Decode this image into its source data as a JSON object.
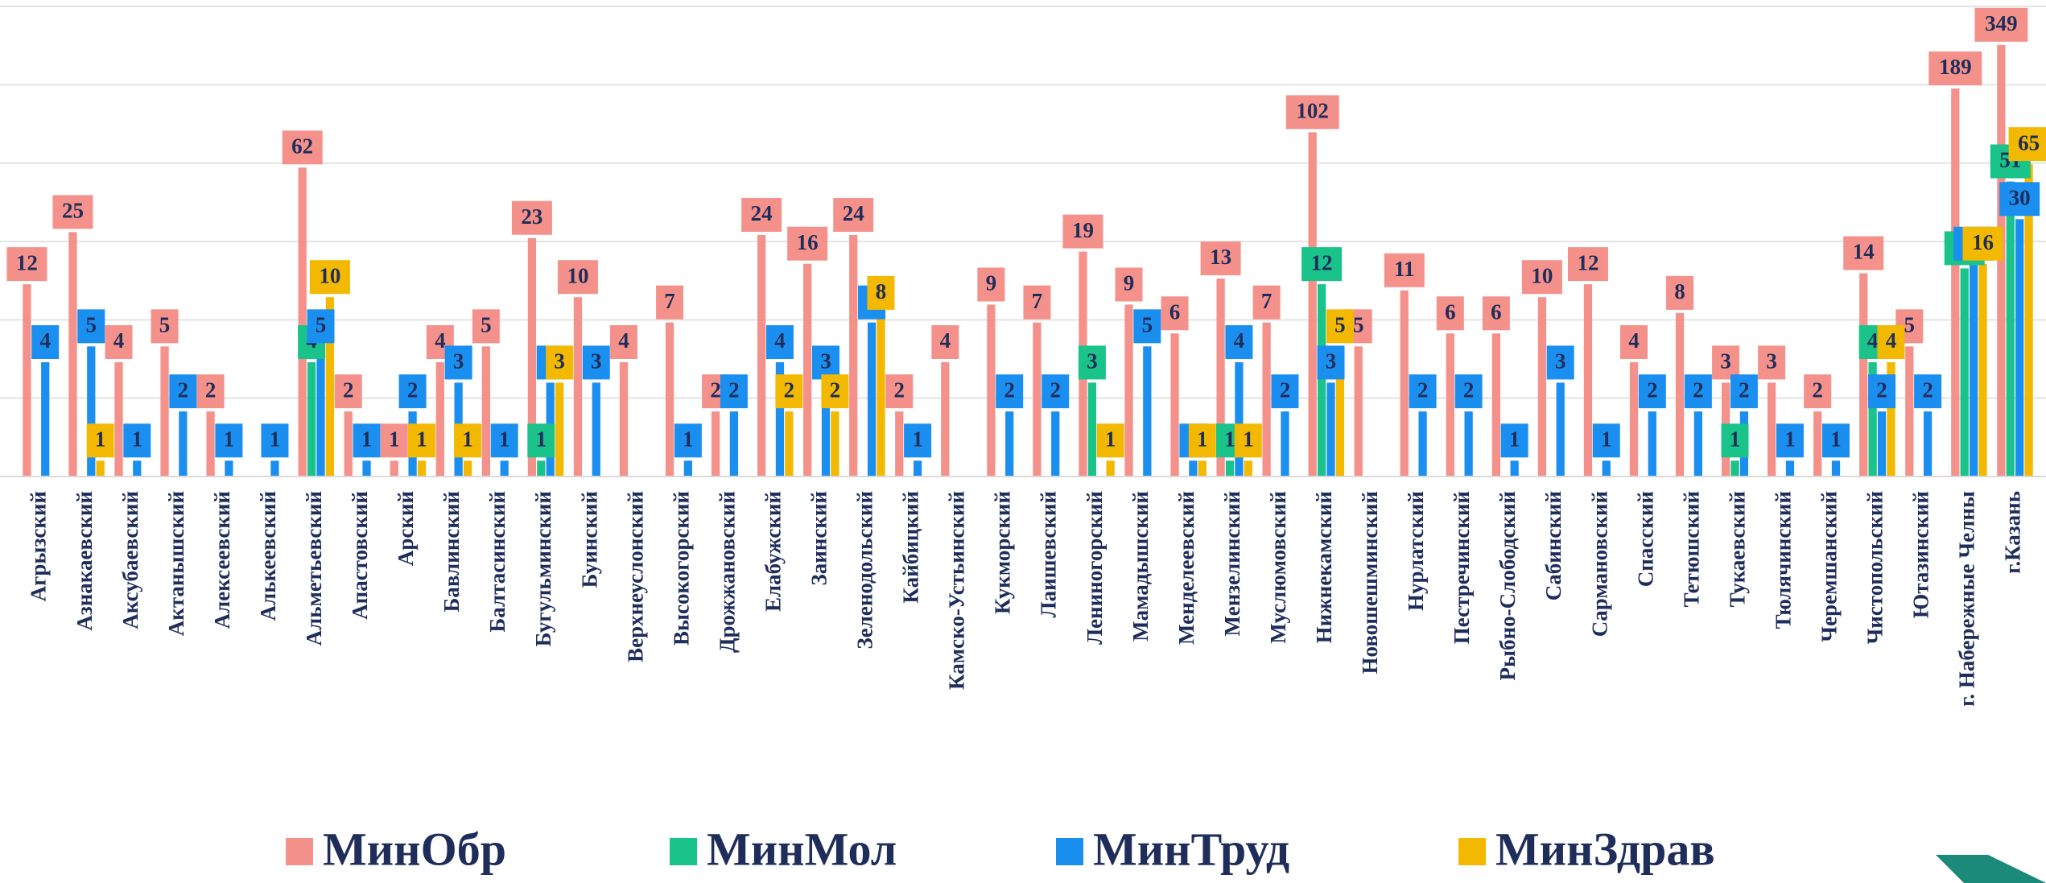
{
  "chart_data": {
    "type": "bar",
    "log_scale": true,
    "ylim": [
      0.8,
      600
    ],
    "grid": true,
    "legend": "bottom",
    "categories": [
      "Агрызский",
      "Азнакаевский",
      "Аксубаевский",
      "Актанышский",
      "Алексеевский",
      "Алькеевский",
      "Альметьевский",
      "Апастовский",
      "Арский",
      "Бавлинский",
      "Балтасинский",
      "Бугульминский",
      "Буинский",
      "Верхнеуслонский",
      "Высокогорский",
      "Дрожжановский",
      "Елабужский",
      "Заинский",
      "Зеленодольский",
      "Кайбицкий",
      "Камско-Устьинский",
      "Кукморский",
      "Лаишевский",
      "Лениногорский",
      "Мамадышский",
      "Менделеевский",
      "Мензелинский",
      "Муслюмовский",
      "Нижнекамский",
      "Новошешминский",
      "Нурлатский",
      "Пестречинский",
      "Рыбно-Слободский",
      "Сабинский",
      "Сармановский",
      "Спасский",
      "Тетюшский",
      "Тукаевский",
      "Тюлячинский",
      "Черемшанский",
      "Чистопольский",
      "Ютазинский",
      "г. Набережные Челны",
      "г.Казань"
    ],
    "series": [
      {
        "name": "МинОбр",
        "color": "#f4918b",
        "values": [
          12,
          25,
          4,
          5,
          2,
          null,
          62,
          2,
          1,
          4,
          5,
          23,
          10,
          4,
          7,
          2,
          24,
          16,
          24,
          2,
          4,
          9,
          7,
          19,
          9,
          6,
          13,
          7,
          102,
          5,
          11,
          6,
          6,
          10,
          12,
          4,
          8,
          3,
          3,
          2,
          14,
          5,
          189,
          349
        ]
      },
      {
        "name": "МинМол",
        "color": "#19c38a",
        "values": [
          null,
          null,
          null,
          null,
          null,
          null,
          4,
          null,
          null,
          null,
          null,
          1,
          null,
          null,
          null,
          null,
          null,
          null,
          null,
          null,
          null,
          null,
          null,
          3,
          null,
          null,
          1,
          null,
          12,
          null,
          null,
          null,
          null,
          null,
          null,
          null,
          null,
          1,
          null,
          null,
          4,
          null,
          15,
          51
        ]
      },
      {
        "name": "МинТруд",
        "color": "#1b8ff0",
        "values": [
          4,
          5,
          1,
          2,
          1,
          1,
          5,
          1,
          2,
          3,
          1,
          3,
          3,
          null,
          1,
          2,
          4,
          3,
          7,
          1,
          null,
          2,
          2,
          null,
          5,
          1,
          4,
          2,
          3,
          null,
          2,
          2,
          1,
          3,
          1,
          2,
          2,
          2,
          1,
          1,
          2,
          2,
          16,
          30
        ]
      },
      {
        "name": "МинЗдрав",
        "color": "#f3b800",
        "values": [
          null,
          1,
          null,
          null,
          null,
          null,
          10,
          null,
          1,
          1,
          null,
          3,
          null,
          null,
          null,
          null,
          2,
          2,
          8,
          null,
          null,
          null,
          null,
          1,
          null,
          1,
          1,
          null,
          5,
          null,
          null,
          null,
          null,
          null,
          null,
          null,
          null,
          null,
          null,
          null,
          4,
          null,
          16,
          65
        ]
      }
    ]
  }
}
